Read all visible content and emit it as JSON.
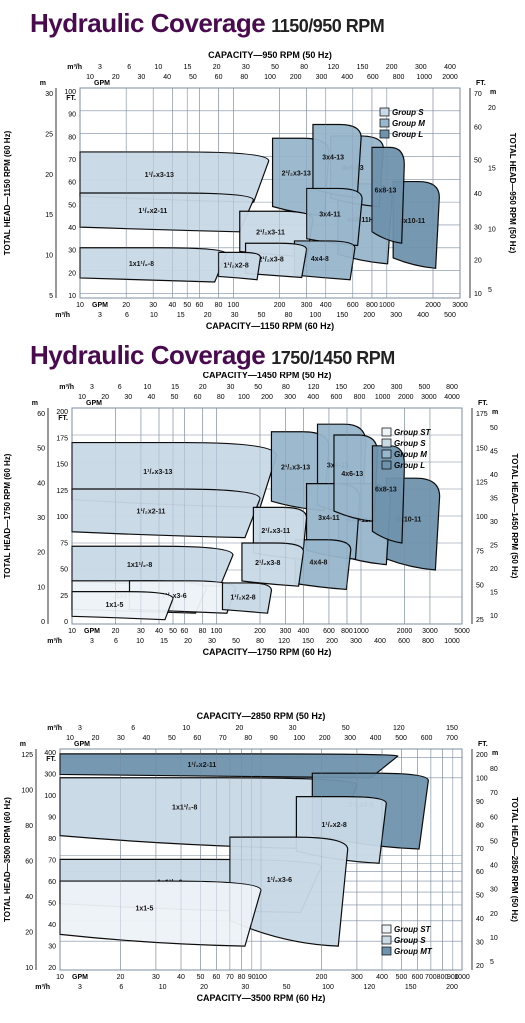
{
  "sections": [
    {
      "title": "Hydraulic Coverage",
      "subtitle": "1150/950 RPM"
    },
    {
      "title": "Hydraulic Coverage",
      "subtitle": "1750/1450 RPM"
    }
  ],
  "colors": {
    "group_st": "#eef3f8",
    "group_s": "#c9d9e6",
    "group_m": "#98b6cc",
    "group_l": "#6f93ad",
    "group_mt": "#6f93ad",
    "grid": "#7c8da0",
    "outline": "#000000"
  },
  "chart_data": [
    {
      "type": "area",
      "top_axis_title": "CAPACITY—950 RPM (50 Hz)",
      "bottom_axis_title": "CAPACITY—1150 RPM (60 Hz)",
      "left_axis_title": "TOTAL HEAD—1150 RPM (60 Hz)",
      "right_axis_title": "TOTAL HEAD—950 RPM (50 Hz)",
      "scale": "log-x",
      "xlim": [
        10,
        3000
      ],
      "ylim_ft": [
        8,
        100
      ],
      "top_m3h": {
        "unit": "m³/h",
        "ticks": [
          "3",
          "6",
          "10",
          "15",
          "20",
          "30",
          "50",
          "80",
          "120",
          "150",
          "200",
          "300",
          "400"
        ]
      },
      "top_gpm": {
        "unit": "GPM",
        "ticks": [
          "10",
          "20",
          "30",
          "40",
          "50",
          "60",
          "80",
          "100",
          "200",
          "300",
          "400",
          "600",
          "800",
          "1000",
          "2000"
        ]
      },
      "bottom_gpm": {
        "unit": "GPM",
        "ticks": [
          "10",
          "20",
          "30",
          "40",
          "50",
          "60",
          "80",
          "100",
          "200",
          "300",
          "400",
          "600",
          "800",
          "1000",
          "2000",
          "3000"
        ]
      },
      "bottom_m3h": {
        "unit": "m³/h",
        "ticks": [
          "3",
          "6",
          "10",
          "15",
          "20",
          "30",
          "50",
          "80",
          "100",
          "150",
          "200",
          "300",
          "400",
          "500"
        ]
      },
      "left_m": {
        "unit": "m",
        "ticks": [
          "30",
          "25",
          "20",
          "15",
          "10",
          "5"
        ]
      },
      "left_ft": {
        "unit": "FT.",
        "ticks": [
          "100",
          "90",
          "80",
          "70",
          "60",
          "50",
          "40",
          "30",
          "20",
          "10"
        ]
      },
      "right_ft": {
        "unit": "FT.",
        "ticks": [
          "70",
          "60",
          "50",
          "40",
          "30",
          "20",
          "10"
        ]
      },
      "right_m": {
        "unit": "m",
        "ticks": [
          "20",
          "15",
          "10",
          "5"
        ]
      },
      "legend": {
        "position": "top-right",
        "entries": [
          {
            "label": "Group S",
            "group": "group_s"
          },
          {
            "label": "Group M",
            "group": "group_m"
          },
          {
            "label": "Group L",
            "group": "group_l"
          }
        ]
      },
      "regions": [
        {
          "label": "1¹/₂x3-13",
          "group": "group_s",
          "qmin": 10,
          "qmax": 170,
          "hmax": 72,
          "hmin": 50,
          "drop": 0.18
        },
        {
          "label": "1¹/₂x2-11",
          "group": "group_s",
          "qmin": 10,
          "qmax": 135,
          "hmax": 54,
          "hmin": 37,
          "drop": 0.18
        },
        {
          "label": "1x1¹/₂-8",
          "group": "group_s",
          "qmin": 10,
          "qmax": 90,
          "hmax": 30,
          "hmin": 15,
          "drop": 0.18
        },
        {
          "label": "1¹/₂x2-8",
          "group": "group_s",
          "qmin": 80,
          "qmax": 150,
          "hmax": 28,
          "hmin": 16,
          "drop": 0.18
        },
        {
          "label": "2¹/₂x3-8",
          "group": "group_s",
          "qmin": 120,
          "qmax": 300,
          "hmax": 32,
          "hmin": 17,
          "drop": 0.18
        },
        {
          "label": "2¹/₂x3-11",
          "group": "group_s",
          "qmin": 110,
          "qmax": 330,
          "hmax": 46,
          "hmin": 26,
          "drop": 0.18
        },
        {
          "label": "4x4-8",
          "group": "group_m",
          "qmin": 250,
          "qmax": 620,
          "hmax": 33,
          "hmin": 16,
          "drop": 0.18
        },
        {
          "label": "2¹/₂x3-13",
          "group": "group_m",
          "qmin": 180,
          "qmax": 420,
          "hmax": 78,
          "hmin": 44,
          "drop": 0.18
        },
        {
          "label": "3x4-11",
          "group": "group_m",
          "qmin": 300,
          "qmax": 690,
          "hmax": 56,
          "hmin": 31,
          "drop": 0.18
        },
        {
          "label": "3x4-13",
          "group": "group_m",
          "qmin": 330,
          "qmax": 680,
          "hmax": 84,
          "hmin": 52,
          "drop": 0.18
        },
        {
          "label": "4x6-13",
          "group": "group_m",
          "qmin": 430,
          "qmax": 950,
          "hmax": 79,
          "hmin": 48,
          "drop": 0.18
        },
        {
          "label": "4x6-11H",
          "group": "group_m",
          "qmin": 480,
          "qmax": 1080,
          "hmax": 58,
          "hmin": 23,
          "drop": 0.18
        },
        {
          "label": "6x8-13",
          "group": "group_l",
          "qmin": 800,
          "qmax": 1300,
          "hmax": 74,
          "hmin": 32,
          "drop": 0.18
        },
        {
          "label": "8x10-11",
          "group": "group_l",
          "qmin": 1100,
          "qmax": 2200,
          "hmax": 59,
          "hmin": 21,
          "drop": 0.18
        }
      ]
    },
    {
      "type": "area",
      "top_axis_title": "CAPACITY—1450 RPM (50 Hz)",
      "bottom_axis_title": "CAPACITY—1750 RPM (60 Hz)",
      "left_axis_title": "TOTAL HEAD—1750 RPM (60 Hz)",
      "right_axis_title": "TOTAL HEAD—1450 RPM (50 Hz)",
      "scale": "log-x",
      "xlim": [
        10,
        5000
      ],
      "ylim_ft": [
        0,
        200
      ],
      "top_m3h": {
        "unit": "m³/h",
        "ticks": [
          "3",
          "6",
          "10",
          "15",
          "20",
          "30",
          "50",
          "80",
          "120",
          "150",
          "200",
          "300",
          "500",
          "800"
        ]
      },
      "top_gpm": {
        "unit": "GPM",
        "ticks": [
          "10",
          "20",
          "30",
          "40",
          "50",
          "60",
          "80",
          "100",
          "200",
          "300",
          "400",
          "600",
          "800",
          "1000",
          "2000",
          "3000",
          "4000"
        ]
      },
      "bottom_gpm": {
        "unit": "GPM",
        "ticks": [
          "10",
          "20",
          "30",
          "40",
          "50",
          "60",
          "80",
          "100",
          "200",
          "300",
          "400",
          "600",
          "800",
          "1000",
          "2000",
          "3000",
          "5000"
        ]
      },
      "bottom_m3h": {
        "unit": "m³/h",
        "ticks": [
          "3",
          "6",
          "10",
          "15",
          "20",
          "30",
          "50",
          "80",
          "120",
          "150",
          "200",
          "300",
          "400",
          "600",
          "800",
          "1000"
        ]
      },
      "left_m": {
        "unit": "m",
        "ticks": [
          "60",
          "50",
          "40",
          "30",
          "20",
          "10",
          "0"
        ]
      },
      "left_ft": {
        "unit": "FT.",
        "ticks": [
          "200",
          "175",
          "150",
          "125",
          "100",
          "75",
          "50",
          "25",
          "0"
        ]
      },
      "right_ft": {
        "unit": "FT.",
        "ticks": [
          "175",
          "150",
          "125",
          "100",
          "75",
          "50",
          "25"
        ]
      },
      "right_m": {
        "unit": "m",
        "ticks": [
          "50",
          "45",
          "40",
          "35",
          "30",
          "25",
          "20",
          "15",
          "10"
        ]
      },
      "legend": {
        "position": "top-right",
        "entries": [
          {
            "label": "Group ST",
            "group": "group_st"
          },
          {
            "label": "Group S",
            "group": "group_s"
          },
          {
            "label": "Group M",
            "group": "group_m"
          },
          {
            "label": "Group L",
            "group": "group_l"
          }
        ]
      },
      "regions": [
        {
          "label": "1¹/₂x3-13",
          "group": "group_s",
          "qmin": 10,
          "qmax": 260,
          "hmax": 168,
          "hmin": 108,
          "drop": 0.2
        },
        {
          "label": "1¹/₂x2-11",
          "group": "group_s",
          "qmin": 10,
          "qmax": 200,
          "hmax": 125,
          "hmin": 80,
          "drop": 0.2
        },
        {
          "label": "1x1¹/₂-8",
          "group": "group_s",
          "qmin": 10,
          "qmax": 130,
          "hmax": 72,
          "hmin": 35,
          "drop": 0.22
        },
        {
          "label": "1x1-5",
          "group": "group_st",
          "qmin": 10,
          "qmax": 50,
          "hmax": 30,
          "hmin": 4,
          "drop": 0.25
        },
        {
          "label": "1x1¹/₂-6",
          "group": "group_st",
          "qmin": 10,
          "qmax": 85,
          "hmax": 40,
          "hmin": 10,
          "drop": 0.25
        },
        {
          "label": "1¹/₂x3-6",
          "group": "group_st",
          "qmin": 25,
          "qmax": 135,
          "hmax": 40,
          "hmin": 10,
          "drop": 0.25
        },
        {
          "label": "1¹/₂x2-8",
          "group": "group_s",
          "qmin": 110,
          "qmax": 240,
          "hmax": 38,
          "hmin": 10,
          "drop": 0.25
        },
        {
          "label": "2¹/₂x3-8",
          "group": "group_s",
          "qmin": 150,
          "qmax": 400,
          "hmax": 75,
          "hmin": 35,
          "drop": 0.2
        },
        {
          "label": "2¹/₂x3-11",
          "group": "group_s",
          "qmin": 180,
          "qmax": 420,
          "hmax": 108,
          "hmin": 60,
          "drop": 0.2
        },
        {
          "label": "4x4-8",
          "group": "group_m",
          "qmin": 350,
          "qmax": 850,
          "hmax": 78,
          "hmin": 32,
          "drop": 0.2
        },
        {
          "label": "2¹/₂x3-13",
          "group": "group_m",
          "qmin": 240,
          "qmax": 600,
          "hmax": 178,
          "hmin": 105,
          "drop": 0.2
        },
        {
          "label": "3x4-11",
          "group": "group_m",
          "qmin": 420,
          "qmax": 980,
          "hmax": 130,
          "hmin": 60,
          "drop": 0.2
        },
        {
          "label": "3x4-13",
          "group": "group_m",
          "qmin": 500,
          "qmax": 1080,
          "hmax": 185,
          "hmin": 100,
          "drop": 0.2
        },
        {
          "label": "4x6-13",
          "group": "group_m",
          "qmin": 650,
          "qmax": 1300,
          "hmax": 175,
          "hmin": 95,
          "drop": 0.2
        },
        {
          "label": "4x6-11H",
          "group": "group_m",
          "qmin": 700,
          "qmax": 1600,
          "hmax": 130,
          "hmin": 55,
          "drop": 0.2
        },
        {
          "label": "6x8-13",
          "group": "group_l",
          "qmin": 1200,
          "qmax": 2000,
          "hmax": 165,
          "hmin": 75,
          "drop": 0.2
        },
        {
          "label": "8x10-11",
          "group": "group_l",
          "qmin": 1500,
          "qmax": 3500,
          "hmax": 135,
          "hmin": 50,
          "drop": 0.2
        }
      ]
    },
    {
      "type": "area",
      "top_axis_title": "CAPACITY—2850 RPM (50 Hz)",
      "bottom_axis_title": "CAPACITY—3500 RPM (60 Hz)",
      "left_axis_title": "TOTAL HEAD—3500 RPM (60 Hz)",
      "right_axis_title": "TOTAL HEAD—2850 RPM (50 Hz)",
      "scale": "log-x log-y",
      "xlim": [
        10,
        1000
      ],
      "ylim_ft": [
        20,
        450
      ],
      "top_m3h": {
        "unit": "m³/h",
        "ticks": [
          "3",
          "6",
          "10",
          "20",
          "30",
          "50",
          "120",
          "150"
        ]
      },
      "top_gpm": {
        "unit": "GPM",
        "ticks": [
          "10",
          "20",
          "30",
          "40",
          "50",
          "60",
          "70",
          "80",
          "90",
          "100",
          "200",
          "300",
          "400",
          "500",
          "600",
          "700"
        ]
      },
      "bottom_gpm": {
        "unit": "GPM",
        "ticks": [
          "10",
          "20",
          "30",
          "40",
          "50",
          "60",
          "70",
          "80",
          "90",
          "100",
          "200",
          "300",
          "400",
          "500",
          "600",
          "700",
          "800",
          "900",
          "1000"
        ]
      },
      "bottom_m3h": {
        "unit": "m³/h",
        "ticks": [
          "3",
          "6",
          "10",
          "20",
          "30",
          "50",
          "100",
          "120",
          "150",
          "200"
        ]
      },
      "left_m": {
        "unit": "m",
        "ticks": [
          "125",
          "100",
          "80",
          "60",
          "40",
          "20",
          "10"
        ]
      },
      "left_ft": {
        "unit": "FT.",
        "ticks": [
          "400",
          "300",
          "100",
          "90",
          "80",
          "70",
          "60",
          "50",
          "40",
          "30",
          "20"
        ]
      },
      "right_ft": {
        "unit": "FT.",
        "ticks": [
          "200",
          "100",
          "90",
          "80",
          "70",
          "60",
          "50",
          "40",
          "30",
          "20"
        ]
      },
      "right_m": {
        "unit": "m",
        "ticks": [
          "80",
          "70",
          "60",
          "50",
          "40",
          "30",
          "20",
          "10",
          "5"
        ]
      },
      "legend": {
        "position": "bottom-right",
        "entries": [
          {
            "label": "Group ST",
            "group": "group_st"
          },
          {
            "label": "Group S",
            "group": "group_s"
          },
          {
            "label": "Group MT",
            "group": "group_mt"
          }
        ]
      },
      "regions": [
        {
          "label": "1¹/₂x2-11",
          "group": "group_mt",
          "qmin": 10,
          "qmax": 480,
          "hmax": 420,
          "hmin": 300,
          "drop": 0.1
        },
        {
          "label": "1x1¹/₂-8",
          "group": "group_s",
          "qmin": 10,
          "qmax": 300,
          "hmax": 300,
          "hmin": 110,
          "drop": 0.15
        },
        {
          "label": "2¹/₂x3-8",
          "group": "group_mt",
          "qmin": 180,
          "qmax": 680,
          "hmax": 320,
          "hmin": 110,
          "drop": 0.15
        },
        {
          "label": "1¹/₂x2-8",
          "group": "group_s",
          "qmin": 150,
          "qmax": 420,
          "hmax": 230,
          "hmin": 90,
          "drop": 0.15
        },
        {
          "label": "1x1¹/₂-6",
          "group": "group_s",
          "qmin": 10,
          "qmax": 200,
          "hmax": 95,
          "hmin": 45,
          "drop": 0.18
        },
        {
          "label": "1¹/₂x3-6",
          "group": "group_s",
          "qmin": 70,
          "qmax": 270,
          "hmax": 130,
          "hmin": 28,
          "drop": 0.2
        },
        {
          "label": "1x1-5",
          "group": "group_st",
          "qmin": 10,
          "qmax": 100,
          "hmax": 70,
          "hmin": 28,
          "drop": 0.2
        }
      ]
    }
  ]
}
